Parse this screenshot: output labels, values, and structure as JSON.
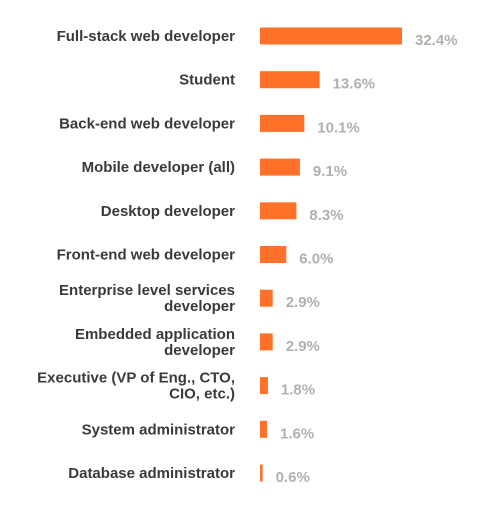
{
  "chart_data": {
    "type": "bar",
    "orientation": "horizontal",
    "title": "",
    "xlabel": "",
    "ylabel": "",
    "categories": [
      "Full-stack web developer",
      "Student",
      "Back-end web developer",
      "Mobile developer (all)",
      "Desktop developer",
      "Front-end web developer",
      "Enterprise level services developer",
      "Embedded application developer",
      "Executive (VP of Eng., CTO, CIO, etc.)",
      "System administrator",
      "Database administrator"
    ],
    "category_lines": [
      [
        "Full-stack web developer"
      ],
      [
        "Student"
      ],
      [
        "Back-end web developer"
      ],
      [
        "Mobile developer (all)"
      ],
      [
        "Desktop developer"
      ],
      [
        "Front-end web developer"
      ],
      [
        "Enterprise level services",
        "developer"
      ],
      [
        "Embedded application",
        "developer"
      ],
      [
        "Executive (VP of Eng., CTO,",
        "CIO, etc.)"
      ],
      [
        "System administrator"
      ],
      [
        "Database administrator"
      ]
    ],
    "values": [
      32.4,
      13.6,
      10.1,
      9.1,
      8.3,
      6.0,
      2.9,
      2.9,
      1.8,
      1.6,
      0.6
    ],
    "value_labels": [
      "32.4%",
      "13.6%",
      "10.1%",
      "9.1%",
      "8.3%",
      "6.0%",
      "2.9%",
      "2.9%",
      "1.8%",
      "1.6%",
      "0.6%"
    ],
    "unit": "%",
    "xlim": [
      0,
      32.4
    ],
    "grid": false,
    "legend": "none",
    "bar_color": "#ff7128",
    "label_color": "#3a3a3a",
    "value_color": "#b0b0b0"
  }
}
